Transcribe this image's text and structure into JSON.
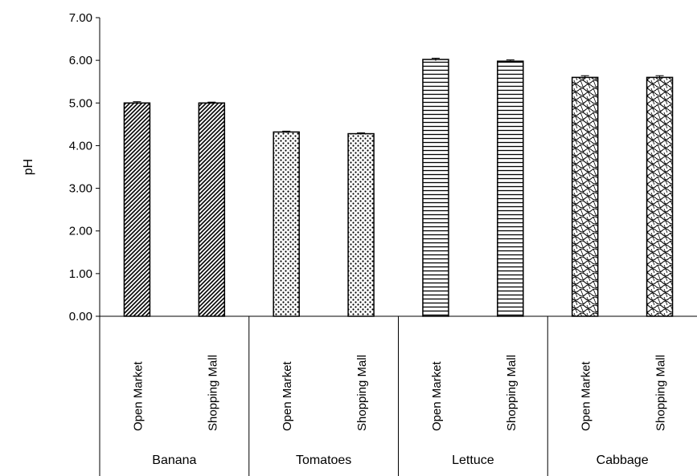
{
  "chart_data": {
    "type": "bar",
    "ylabel": "pH",
    "xlabel": "",
    "ylim": [
      0,
      7
    ],
    "yticks": [
      "0.00",
      "1.00",
      "2.00",
      "3.00",
      "4.00",
      "5.00",
      "6.00",
      "7.00"
    ],
    "grid": false,
    "legend": "none",
    "groups": [
      {
        "name": "Banana",
        "pattern": "diagonal",
        "bars": [
          {
            "category": "Open Market",
            "value": 5.0,
            "error": 0.03
          },
          {
            "category": "Shopping Mall",
            "value": 5.0,
            "error": 0.02
          }
        ]
      },
      {
        "name": "Tomatoes",
        "pattern": "dots",
        "bars": [
          {
            "category": "Open Market",
            "value": 4.32,
            "error": 0.02
          },
          {
            "category": "Shopping Mall",
            "value": 4.28,
            "error": 0.02
          }
        ]
      },
      {
        "name": "Lettuce",
        "pattern": "horizontal",
        "bars": [
          {
            "category": "Open Market",
            "value": 6.02,
            "error": 0.03
          },
          {
            "category": "Shopping Mall",
            "value": 5.98,
            "error": 0.03
          }
        ]
      },
      {
        "name": "Cabbage",
        "pattern": "wave",
        "bars": [
          {
            "category": "Open Market",
            "value": 5.6,
            "error": 0.04
          },
          {
            "category": "Shopping Mall",
            "value": 5.6,
            "error": 0.04
          }
        ]
      }
    ]
  }
}
